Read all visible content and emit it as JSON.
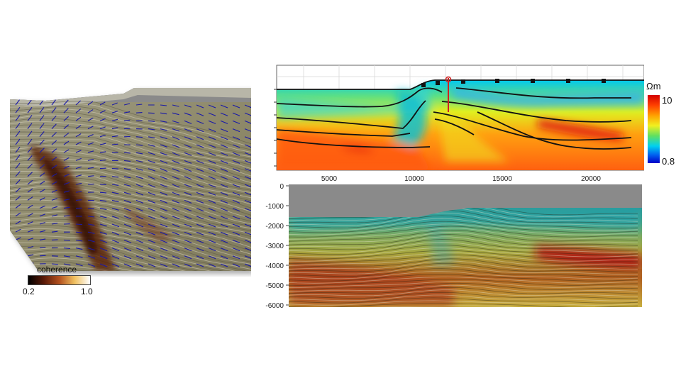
{
  "coherence_panel": {
    "colorbar_title": "coherence",
    "min_label": "0.2",
    "max_label": "1.0",
    "colors": [
      "#000000",
      "#5a1a08",
      "#b3501e",
      "#f0c060",
      "#ffffff"
    ]
  },
  "resistivity_panel": {
    "unit_label": "Ωm",
    "colorbar_max": "10",
    "colorbar_min": "0.8",
    "x_ticks": [
      "5000",
      "10000",
      "15000",
      "20000"
    ]
  },
  "seismic_panel": {
    "y_ticks": [
      "0",
      "-1000",
      "-2000",
      "-3000",
      "-4000",
      "-5000",
      "-6000"
    ]
  },
  "colors": {
    "arrow_blue": "#1a1aa8",
    "mt_high": "#d40000",
    "mt_low": "#0000c8",
    "sky_gray": "#8a8a8a"
  }
}
